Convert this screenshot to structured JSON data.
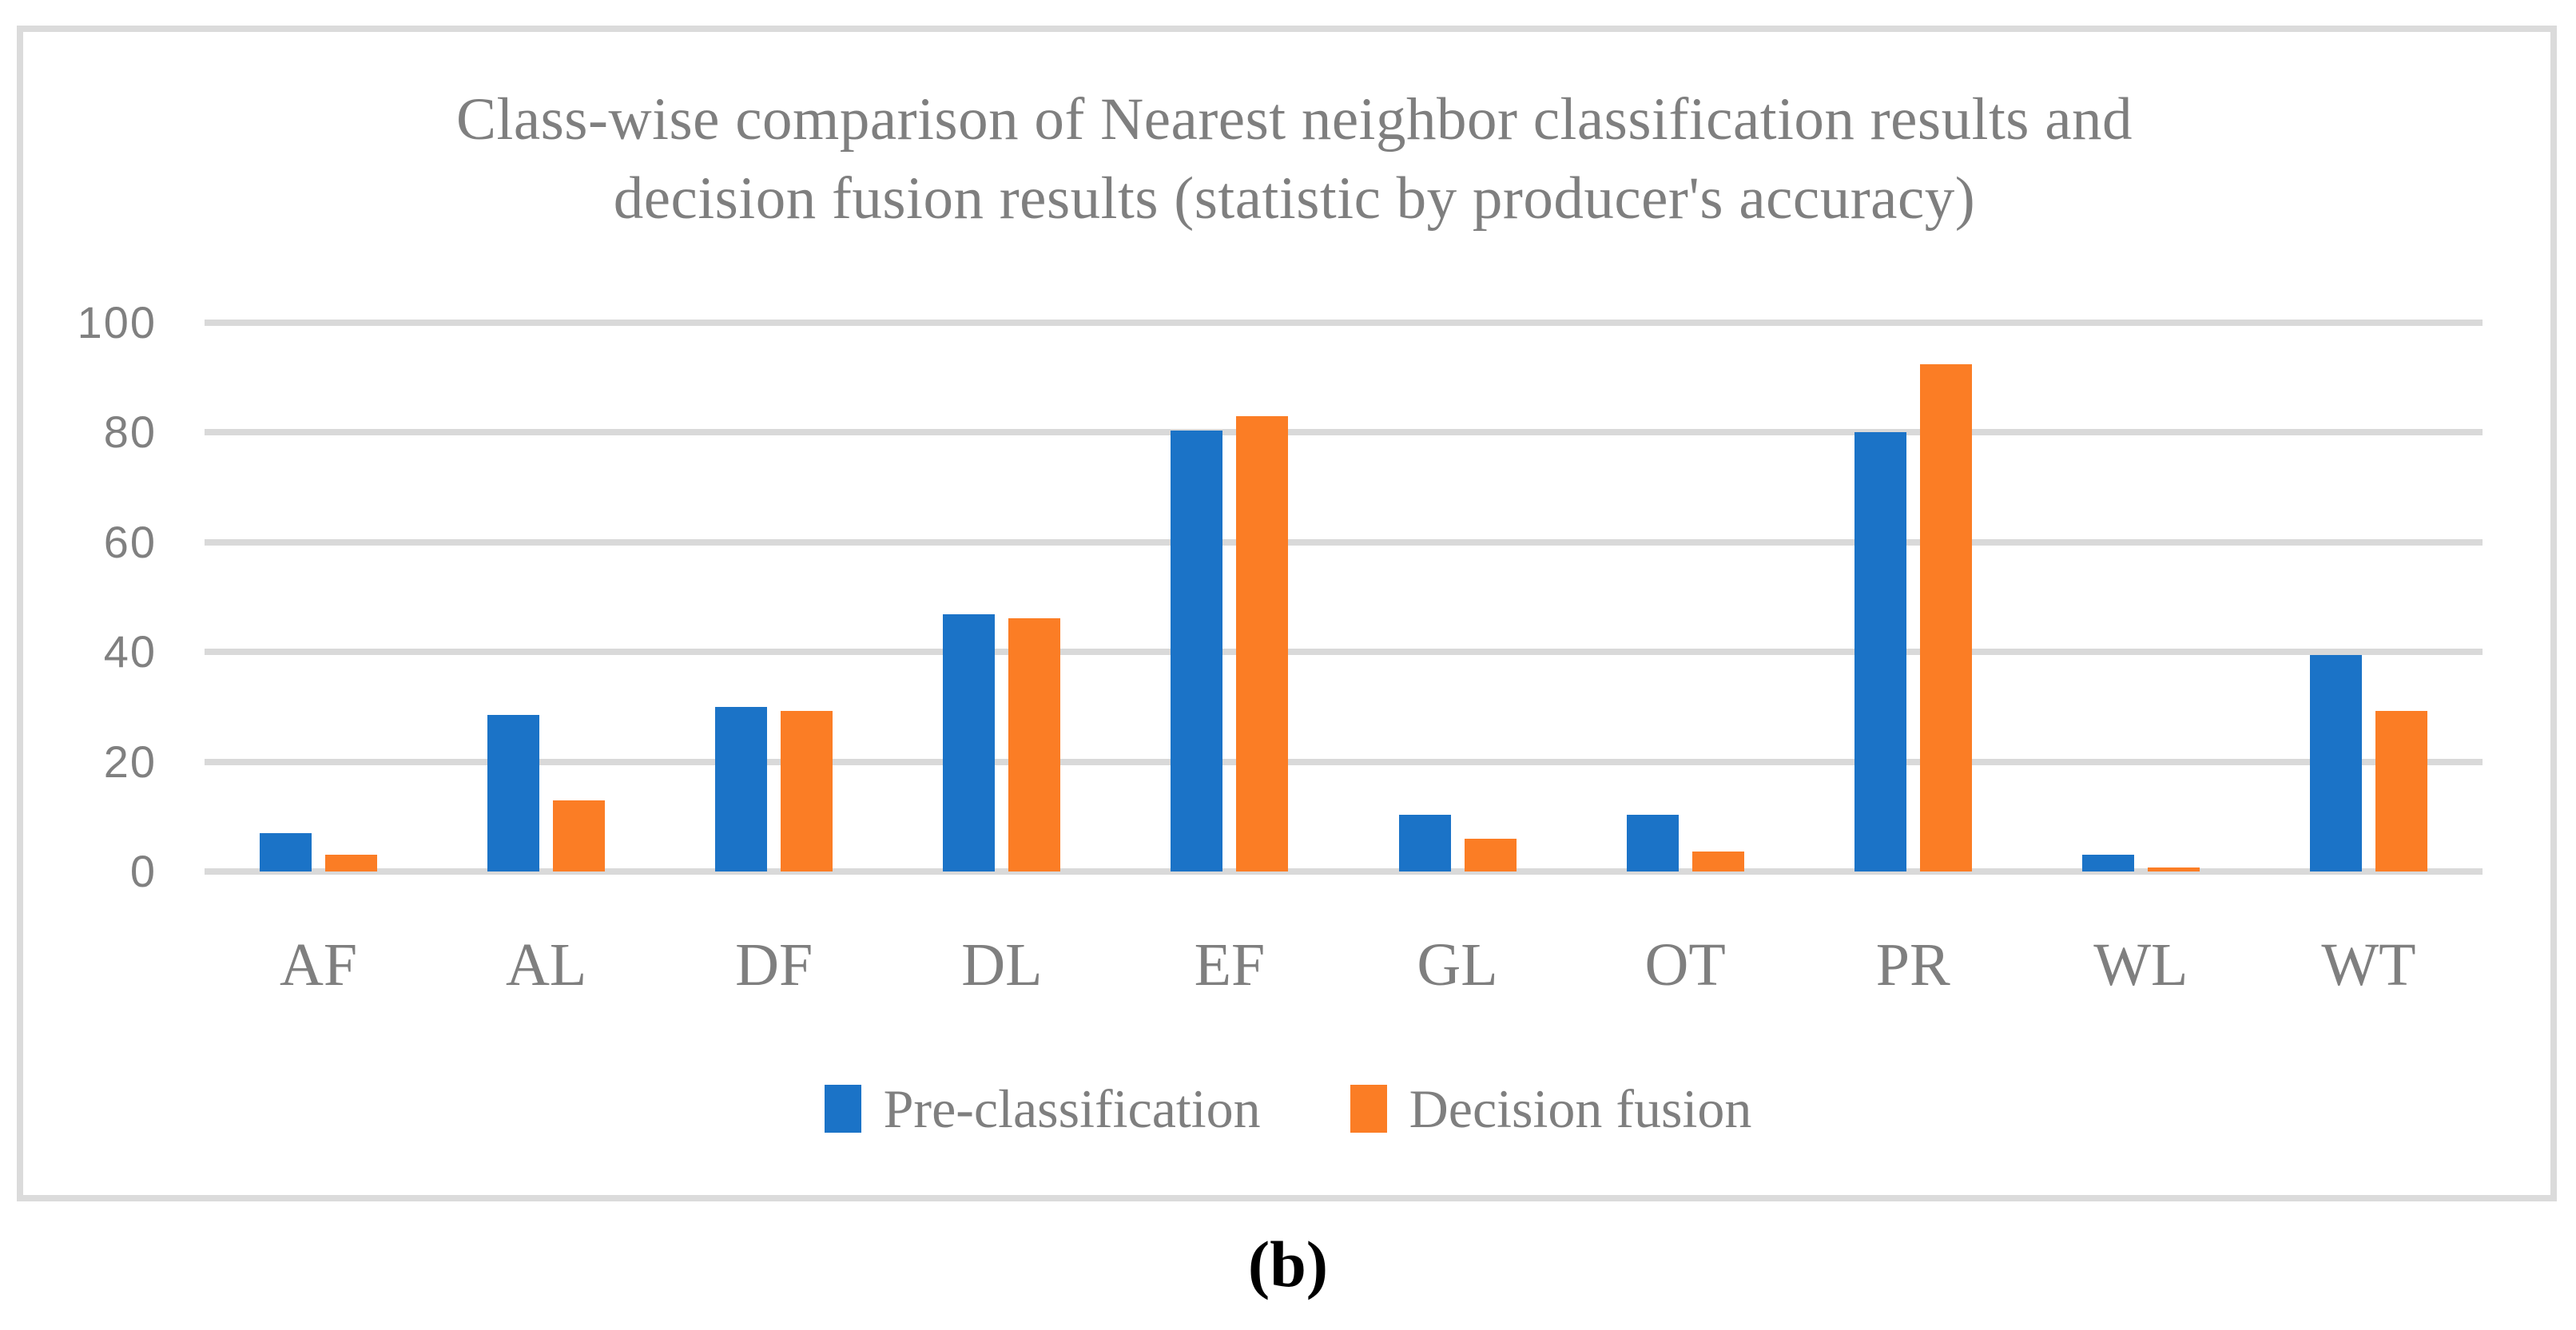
{
  "figure": {
    "caption": "(b)"
  },
  "chart_data": {
    "type": "bar",
    "title": "Class-wise comparison of Nearest neighbor classification results and decision fusion results (statistic by producer's accuracy)",
    "title_lines": [
      "Class-wise comparison of Nearest neighbor classification results and",
      "decision fusion results (statistic by producer's accuracy)"
    ],
    "categories": [
      "AF",
      "AL",
      "DF",
      "DL",
      "EF",
      "GL",
      "OT",
      "PR",
      "WL",
      "WT"
    ],
    "series": [
      {
        "name": "Pre-classification",
        "color": "#1b73c7",
        "values": [
          7.0,
          28.5,
          30.0,
          46.8,
          80.3,
          10.3,
          10.3,
          80.0,
          3.1,
          39.4
        ]
      },
      {
        "name": "Decision fusion",
        "color": "#fb7d25",
        "values": [
          3.0,
          13.0,
          29.3,
          46.2,
          83.0,
          6.0,
          3.6,
          92.5,
          0.8,
          29.2
        ]
      }
    ],
    "ylim": [
      0,
      100
    ],
    "y_ticks": [
      0,
      20,
      40,
      60,
      80,
      100
    ],
    "xlabel": "",
    "ylabel": "",
    "grid": "horizontal",
    "legend_position": "bottom",
    "colors": {
      "gridline": "#d9d9d9",
      "axis_text": "#808080",
      "title_text": "#7f7f7f",
      "figure_border": "#dbdbdb"
    }
  }
}
